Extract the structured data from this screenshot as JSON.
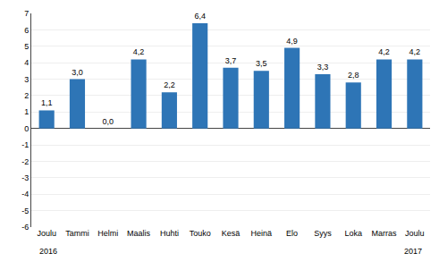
{
  "chart_data": {
    "type": "bar",
    "categories": [
      "Joulu",
      "Tammi",
      "Helmi",
      "Maalis",
      "Huhti",
      "Touko",
      "Kesä",
      "Heinä",
      "Elo",
      "Syys",
      "Loka",
      "Marras",
      "Joulu"
    ],
    "values": [
      1.1,
      3.0,
      0.0,
      4.2,
      2.2,
      6.4,
      3.7,
      3.5,
      4.9,
      3.3,
      2.8,
      4.2,
      4.2
    ],
    "value_labels": [
      "1,1",
      "3,0",
      "0,0",
      "4,2",
      "2,2",
      "6,4",
      "3,7",
      "3,5",
      "4,9",
      "3,3",
      "2,8",
      "4,2",
      "4,2"
    ],
    "color": "#2E75B6",
    "ylim": [
      -6,
      7
    ],
    "yticks": [
      -6,
      -5,
      -4,
      -3,
      -2,
      -1,
      0,
      1,
      2,
      3,
      4,
      5,
      6,
      7
    ],
    "grid": true,
    "data_labels": true,
    "annotations": [
      "2016",
      "2017"
    ]
  }
}
